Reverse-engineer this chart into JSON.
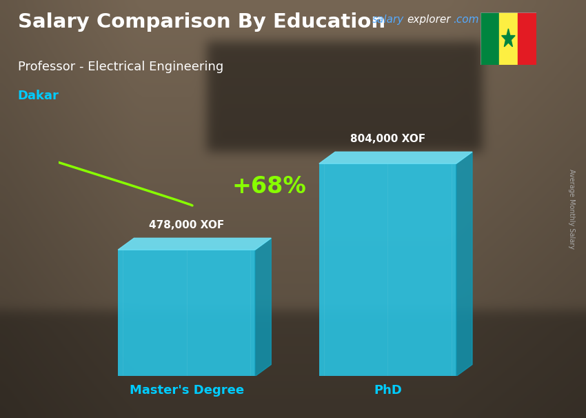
{
  "title_bold": "Salary Comparison By Education",
  "subtitle": "Professor - Electrical Engineering",
  "city": "Dakar",
  "watermark_salary": "salary",
  "watermark_explorer": "explorer",
  "watermark_com": ".com",
  "ylabel": "Average Monthly Salary",
  "categories": [
    "Master's Degree",
    "PhD"
  ],
  "values": [
    478000,
    804000
  ],
  "value_labels": [
    "478,000 XOF",
    "804,000 XOF"
  ],
  "pct_change": "+68%",
  "bar_front_color": "#29c5e6",
  "bar_top_color": "#6ee0f5",
  "bar_side_color": "#0e9ab8",
  "title_color": "#ffffff",
  "subtitle_color": "#ffffff",
  "city_color": "#00ccff",
  "watermark_salary_color": "#55aaff",
  "watermark_other_color": "#ffffff",
  "pct_color": "#88ff00",
  "value_label_color": "#ffffff",
  "xlabel_color": "#00ccff",
  "ylabel_color": "#aaaaaa",
  "arrow_color": "#88ff00",
  "fig_width": 8.5,
  "fig_height": 6.06,
  "dpi": 100
}
